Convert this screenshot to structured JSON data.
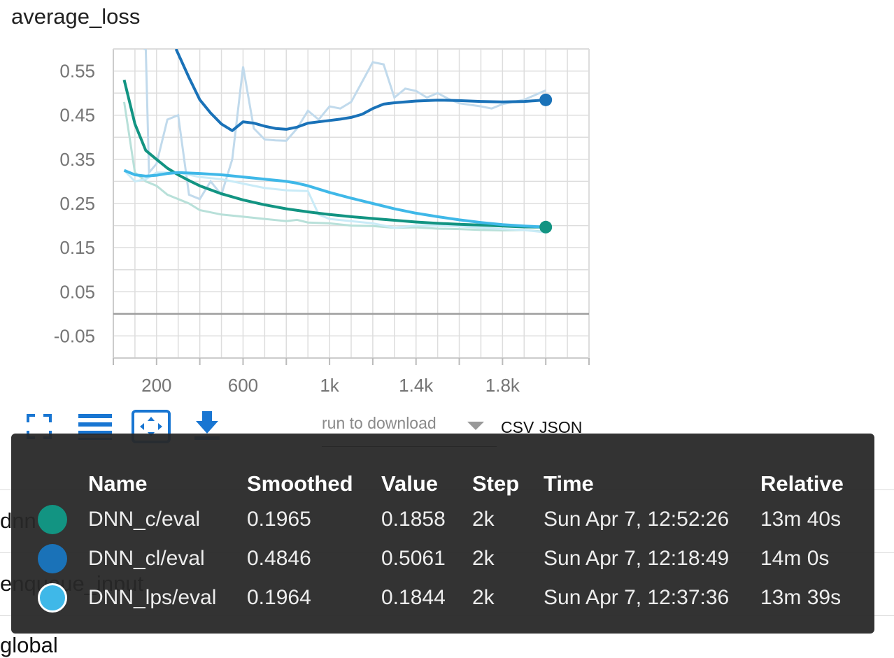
{
  "chart_data": {
    "type": "line",
    "title": "average_loss",
    "xlabel": "",
    "ylabel": "",
    "xlim": [
      0,
      2200
    ],
    "ylim": [
      -0.1,
      0.6
    ],
    "x_ticks": [
      200,
      600,
      1000,
      1400,
      1800
    ],
    "x_tick_labels": [
      "200",
      "600",
      "1k",
      "1.4k",
      "1.8k"
    ],
    "y_ticks": [
      0.55,
      0.45,
      0.35,
      0.25,
      0.15,
      0.05,
      -0.05
    ],
    "y_tick_labels": [
      "0.55",
      "0.45",
      "0.35",
      "0.25",
      "0.15",
      "0.05",
      "-0.05"
    ],
    "grid": true,
    "series": [
      {
        "name": "DNN_c/eval",
        "color": "#129482",
        "raw_color": "#b8e0d9",
        "smoothed": [
          [
            50,
            0.53
          ],
          [
            100,
            0.43
          ],
          [
            150,
            0.37
          ],
          [
            200,
            0.35
          ],
          [
            250,
            0.33
          ],
          [
            300,
            0.315
          ],
          [
            350,
            0.302
          ],
          [
            400,
            0.29
          ],
          [
            500,
            0.272
          ],
          [
            600,
            0.258
          ],
          [
            700,
            0.247
          ],
          [
            800,
            0.238
          ],
          [
            900,
            0.231
          ],
          [
            1000,
            0.225
          ],
          [
            1100,
            0.22
          ],
          [
            1200,
            0.216
          ],
          [
            1300,
            0.212
          ],
          [
            1400,
            0.208
          ],
          [
            1500,
            0.205
          ],
          [
            1600,
            0.203
          ],
          [
            1700,
            0.201
          ],
          [
            1800,
            0.199
          ],
          [
            1900,
            0.197
          ],
          [
            2000,
            0.1965
          ]
        ],
        "raw": [
          [
            50,
            0.48
          ],
          [
            100,
            0.32
          ],
          [
            150,
            0.3
          ],
          [
            200,
            0.29
          ],
          [
            250,
            0.27
          ],
          [
            300,
            0.26
          ],
          [
            350,
            0.25
          ],
          [
            400,
            0.235
          ],
          [
            500,
            0.225
          ],
          [
            600,
            0.22
          ],
          [
            700,
            0.215
          ],
          [
            800,
            0.21
          ],
          [
            850,
            0.213
          ],
          [
            900,
            0.207
          ],
          [
            1000,
            0.205
          ],
          [
            1100,
            0.2
          ],
          [
            1200,
            0.199
          ],
          [
            1300,
            0.195
          ],
          [
            1400,
            0.196
          ],
          [
            1500,
            0.193
          ],
          [
            1600,
            0.192
          ],
          [
            1700,
            0.19
          ],
          [
            1800,
            0.189
          ],
          [
            1900,
            0.19
          ],
          [
            2000,
            0.1858
          ]
        ]
      },
      {
        "name": "DNN_cl/eval",
        "color": "#1a72b8",
        "raw_color": "#c1daec",
        "smoothed": [
          [
            290,
            0.6
          ],
          [
            350,
            0.535
          ],
          [
            400,
            0.485
          ],
          [
            450,
            0.455
          ],
          [
            500,
            0.43
          ],
          [
            550,
            0.415
          ],
          [
            600,
            0.435
          ],
          [
            650,
            0.432
          ],
          [
            700,
            0.425
          ],
          [
            750,
            0.42
          ],
          [
            800,
            0.418
          ],
          [
            850,
            0.423
          ],
          [
            900,
            0.432
          ],
          [
            950,
            0.435
          ],
          [
            1000,
            0.438
          ],
          [
            1050,
            0.441
          ],
          [
            1100,
            0.445
          ],
          [
            1150,
            0.452
          ],
          [
            1200,
            0.465
          ],
          [
            1250,
            0.475
          ],
          [
            1300,
            0.478
          ],
          [
            1400,
            0.482
          ],
          [
            1500,
            0.484
          ],
          [
            1600,
            0.483
          ],
          [
            1700,
            0.481
          ],
          [
            1800,
            0.48
          ],
          [
            1900,
            0.481
          ],
          [
            2000,
            0.4846
          ]
        ],
        "raw": [
          [
            140,
            0.6
          ],
          [
            150,
            0.6
          ],
          [
            165,
            0.32
          ],
          [
            200,
            0.34
          ],
          [
            250,
            0.44
          ],
          [
            300,
            0.45
          ],
          [
            350,
            0.27
          ],
          [
            400,
            0.26
          ],
          [
            450,
            0.3
          ],
          [
            500,
            0.27
          ],
          [
            550,
            0.35
          ],
          [
            600,
            0.56
          ],
          [
            650,
            0.42
          ],
          [
            700,
            0.395
          ],
          [
            750,
            0.393
          ],
          [
            800,
            0.392
          ],
          [
            850,
            0.42
          ],
          [
            900,
            0.46
          ],
          [
            950,
            0.44
          ],
          [
            1000,
            0.47
          ],
          [
            1050,
            0.465
          ],
          [
            1100,
            0.48
          ],
          [
            1150,
            0.525
          ],
          [
            1200,
            0.57
          ],
          [
            1250,
            0.565
          ],
          [
            1300,
            0.49
          ],
          [
            1350,
            0.51
          ],
          [
            1400,
            0.505
          ],
          [
            1450,
            0.49
          ],
          [
            1500,
            0.5
          ],
          [
            1550,
            0.487
          ],
          [
            1600,
            0.477
          ],
          [
            1700,
            0.47
          ],
          [
            1750,
            0.465
          ],
          [
            1800,
            0.475
          ],
          [
            1900,
            0.485
          ],
          [
            2000,
            0.5061
          ]
        ]
      },
      {
        "name": "DNN_lps/eval",
        "color": "#3fb8e8",
        "raw_color": "#c9ebf7",
        "smoothed": [
          [
            50,
            0.325
          ],
          [
            100,
            0.315
          ],
          [
            150,
            0.312
          ],
          [
            200,
            0.314
          ],
          [
            250,
            0.318
          ],
          [
            300,
            0.32
          ],
          [
            400,
            0.318
          ],
          [
            500,
            0.315
          ],
          [
            600,
            0.31
          ],
          [
            700,
            0.305
          ],
          [
            800,
            0.3
          ],
          [
            850,
            0.296
          ],
          [
            900,
            0.29
          ],
          [
            1000,
            0.275
          ],
          [
            1100,
            0.262
          ],
          [
            1200,
            0.25
          ],
          [
            1300,
            0.238
          ],
          [
            1400,
            0.228
          ],
          [
            1500,
            0.22
          ],
          [
            1600,
            0.213
          ],
          [
            1700,
            0.207
          ],
          [
            1800,
            0.202
          ],
          [
            1900,
            0.199
          ],
          [
            2000,
            0.1964
          ]
        ],
        "raw": [
          [
            50,
            0.325
          ],
          [
            100,
            0.3
          ],
          [
            150,
            0.305
          ],
          [
            200,
            0.32
          ],
          [
            300,
            0.32
          ],
          [
            400,
            0.31
          ],
          [
            500,
            0.305
          ],
          [
            550,
            0.3
          ],
          [
            600,
            0.295
          ],
          [
            700,
            0.285
          ],
          [
            800,
            0.28
          ],
          [
            900,
            0.278
          ],
          [
            950,
            0.225
          ],
          [
            1000,
            0.215
          ],
          [
            1100,
            0.21
          ],
          [
            1200,
            0.205
          ],
          [
            1300,
            0.195
          ],
          [
            1400,
            0.2
          ],
          [
            1500,
            0.2
          ],
          [
            1600,
            0.198
          ],
          [
            1700,
            0.195
          ],
          [
            1800,
            0.192
          ],
          [
            1900,
            0.19
          ],
          [
            2000,
            0.1844
          ]
        ]
      }
    ]
  },
  "toolbar": {
    "icons": [
      "fullscreen-icon",
      "data-series-icon",
      "fit-domain-icon",
      "download-icon"
    ],
    "run_select_placeholder": "run to download",
    "csv_label": "CSV",
    "json_label": "JSON"
  },
  "background_items": [
    "dnn",
    "enqueue_input",
    "global"
  ],
  "tooltip": {
    "headers": [
      "Name",
      "Smoothed",
      "Value",
      "Step",
      "Time",
      "Relative"
    ],
    "rows": [
      {
        "name": "DNN_c/eval",
        "smoothed": "0.1965",
        "value": "0.1858",
        "step": "2k",
        "time": "Sun Apr 7, 12:52:26",
        "relative": "13m 40s",
        "color": "#129482"
      },
      {
        "name": "DNN_cl/eval",
        "smoothed": "0.4846",
        "value": "0.5061",
        "step": "2k",
        "time": "Sun Apr 7, 12:18:49",
        "relative": "14m 0s",
        "color": "#1a72b8"
      },
      {
        "name": "DNN_lps/eval",
        "smoothed": "0.1964",
        "value": "0.1844",
        "step": "2k",
        "time": "Sun Apr 7, 12:37:36",
        "relative": "13m 39s",
        "color": "#3fb8e8"
      }
    ]
  }
}
